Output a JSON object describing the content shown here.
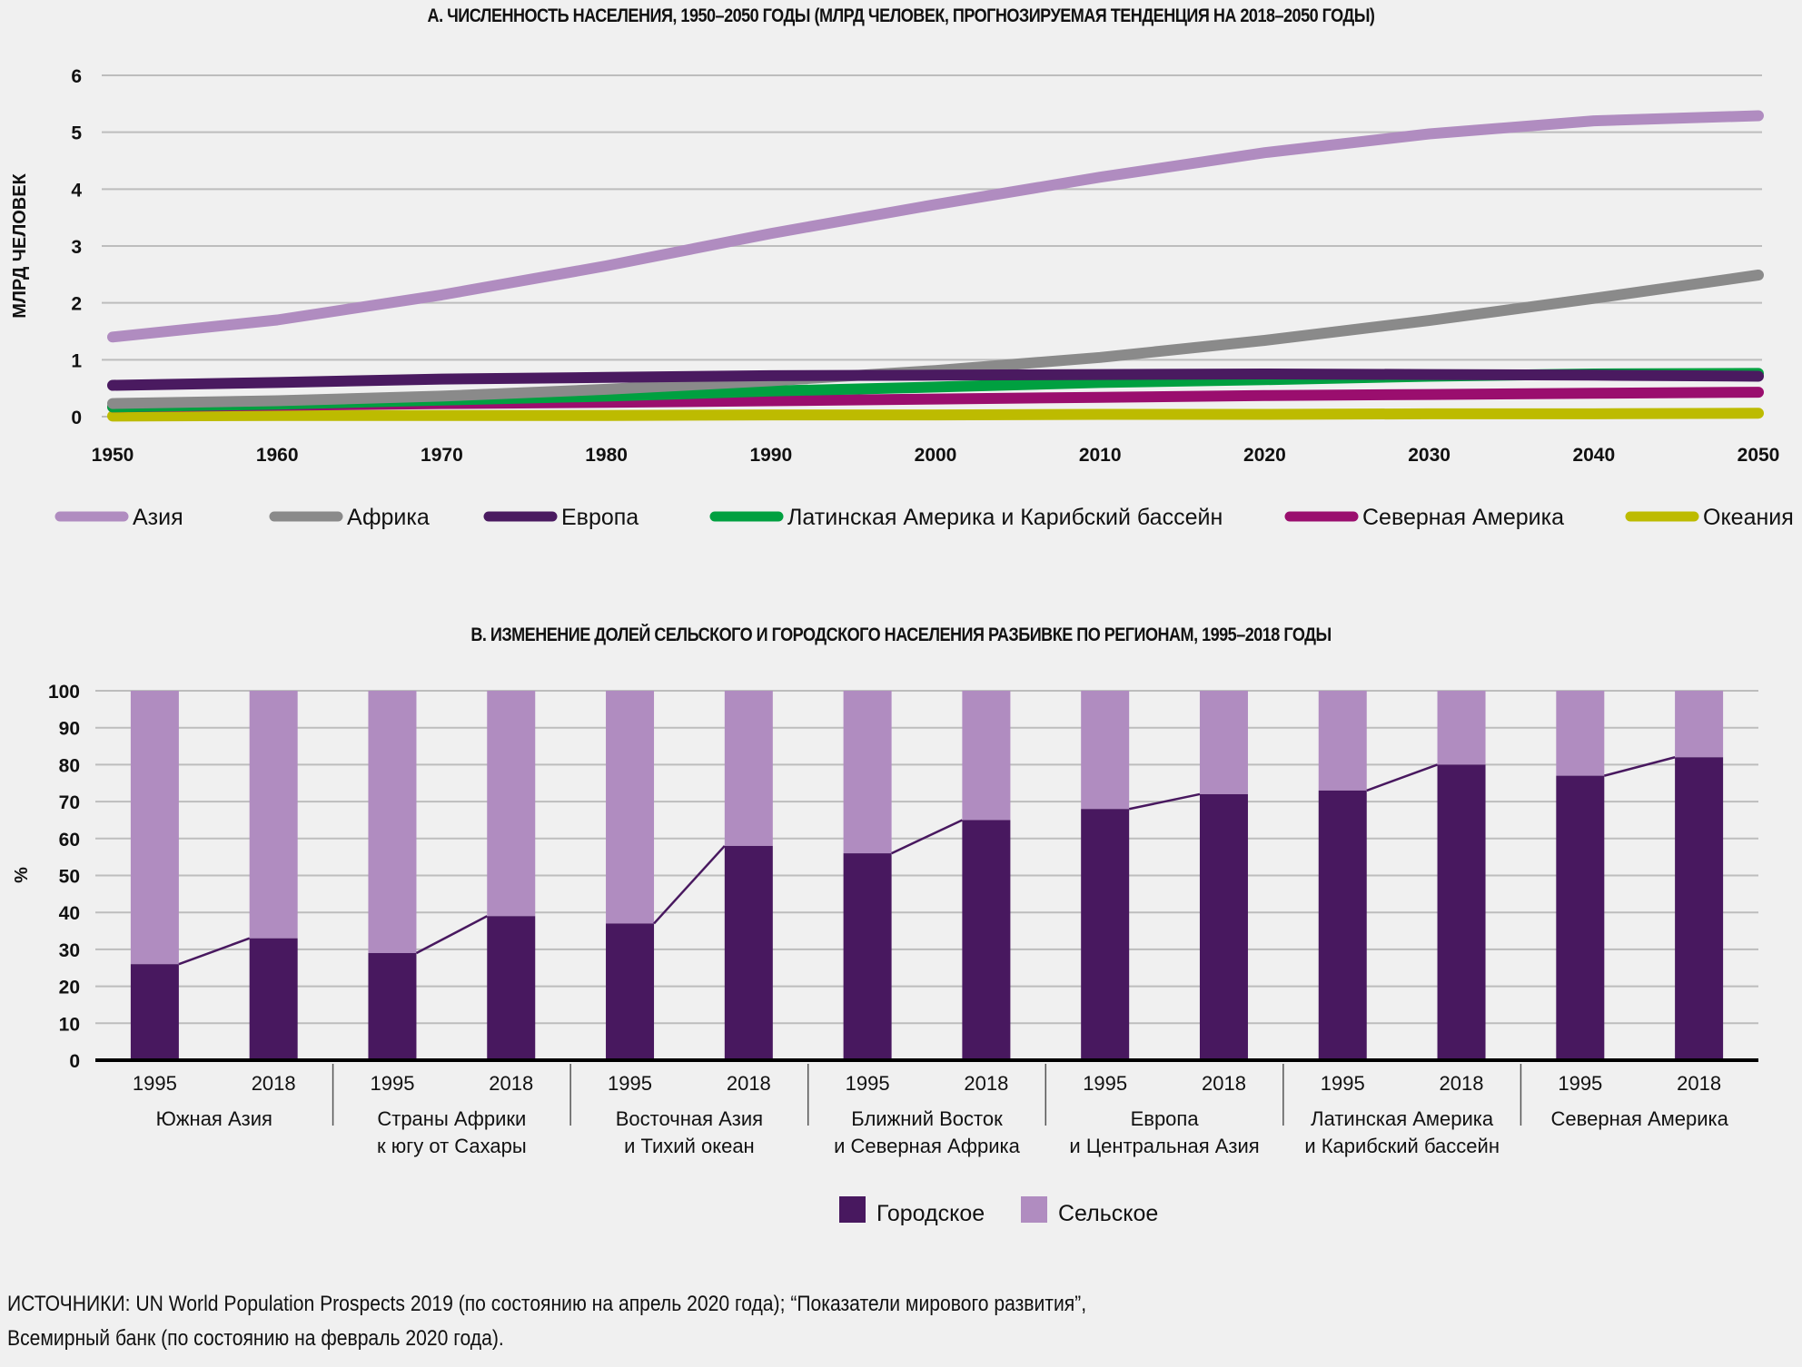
{
  "chart_data": [
    {
      "type": "line",
      "title": "A. ЧИСЛЕННОСТЬ НАСЕЛЕНИЯ, 1950–2050 ГОДЫ (МЛРД ЧЕЛОВЕК, ПРОГНОЗИРУЕМАЯ ТЕНДЕНЦИЯ НА 2018–2050 ГОДЫ)",
      "xlabel": "",
      "ylabel": "МЛРД ЧЕЛОВЕК",
      "xlim": [
        1950,
        2050
      ],
      "ylim": [
        0,
        6
      ],
      "x_ticks": [
        "1950",
        "1960",
        "1970",
        "1980",
        "1990",
        "2000",
        "2010",
        "2020",
        "2030",
        "2040",
        "2050"
      ],
      "y_ticks": [
        "0",
        "1",
        "2",
        "3",
        "4",
        "5",
        "6"
      ],
      "grid": true,
      "legend_position": "bottom",
      "x": [
        1950,
        1960,
        1970,
        1980,
        1990,
        2000,
        2010,
        2020,
        2030,
        2040,
        2050
      ],
      "series": [
        {
          "name": "Азия",
          "color": "#b08cc0",
          "values": [
            1.4,
            1.7,
            2.14,
            2.65,
            3.22,
            3.73,
            4.21,
            4.64,
            4.97,
            5.2,
            5.29
          ]
        },
        {
          "name": "Африка",
          "color": "#8a8a8a",
          "values": [
            0.23,
            0.28,
            0.36,
            0.48,
            0.63,
            0.81,
            1.04,
            1.34,
            1.69,
            2.08,
            2.49
          ]
        },
        {
          "name": "Европа",
          "color": "#4a1a60",
          "values": [
            0.55,
            0.6,
            0.66,
            0.69,
            0.72,
            0.73,
            0.74,
            0.75,
            0.74,
            0.73,
            0.71
          ]
        },
        {
          "name": "Латинская Америка и Карибский бассейн",
          "color": "#00a040",
          "values": [
            0.17,
            0.22,
            0.29,
            0.36,
            0.45,
            0.52,
            0.6,
            0.65,
            0.71,
            0.75,
            0.76
          ]
        },
        {
          "name": "Северная Америка",
          "color": "#9a0e6e",
          "values": [
            0.17,
            0.2,
            0.23,
            0.25,
            0.28,
            0.31,
            0.34,
            0.37,
            0.39,
            0.41,
            0.43
          ]
        },
        {
          "name": "Океания",
          "color": "#bdbb00",
          "values": [
            0.01,
            0.02,
            0.02,
            0.02,
            0.03,
            0.03,
            0.04,
            0.04,
            0.05,
            0.05,
            0.06
          ]
        }
      ]
    },
    {
      "type": "bar",
      "stacked": true,
      "title": "B. ИЗМЕНЕНИЕ ДОЛЕЙ СЕЛЬСКОГО И ГОРОДСКОГО НАСЕЛЕНИЯ РАЗБИВКЕ ПО РЕГИОНАМ, 1995–2018 ГОДЫ",
      "xlabel": "",
      "ylabel": "%",
      "ylim": [
        0,
        100
      ],
      "y_ticks": [
        "0",
        "10",
        "20",
        "30",
        "40",
        "50",
        "60",
        "70",
        "80",
        "90",
        "100"
      ],
      "grid": true,
      "legend_position": "bottom",
      "groups": [
        {
          "name_lines": [
            "Южная Азия"
          ],
          "years": [
            "1995",
            "2018"
          ],
          "urban": [
            26,
            33
          ]
        },
        {
          "name_lines": [
            "Страны Африки",
            "к югу от Сахары"
          ],
          "years": [
            "1995",
            "2018"
          ],
          "urban": [
            29,
            39
          ]
        },
        {
          "name_lines": [
            "Восточная Азия",
            "и Тихий океан"
          ],
          "years": [
            "1995",
            "2018"
          ],
          "urban": [
            37,
            58
          ]
        },
        {
          "name_lines": [
            "Ближний Восток",
            "и Северная Африка"
          ],
          "years": [
            "1995",
            "2018"
          ],
          "urban": [
            56,
            65
          ]
        },
        {
          "name_lines": [
            "Европа",
            "и Центральная Азия"
          ],
          "years": [
            "1995",
            "2018"
          ],
          "urban": [
            68,
            72
          ]
        },
        {
          "name_lines": [
            "Латинская Америка",
            "и Карибский бассейн"
          ],
          "years": [
            "1995",
            "2018"
          ],
          "urban": [
            73,
            80
          ]
        },
        {
          "name_lines": [
            "Северная Америка"
          ],
          "years": [
            "1995",
            "2018"
          ],
          "urban": [
            77,
            82
          ]
        }
      ],
      "series": [
        {
          "name": "Городское",
          "color": "#48185f"
        },
        {
          "name": "Сельское",
          "color": "#b08cc0"
        }
      ]
    }
  ],
  "footer": {
    "sources_line1": "ИСТОЧНИКИ: UN World Population Prospects 2019 (по состоянию на апрель 2020 года); “Показатели мирового развития”,",
    "sources_line2": "Всемирный банк (по состоянию на февраль 2020 года)."
  }
}
